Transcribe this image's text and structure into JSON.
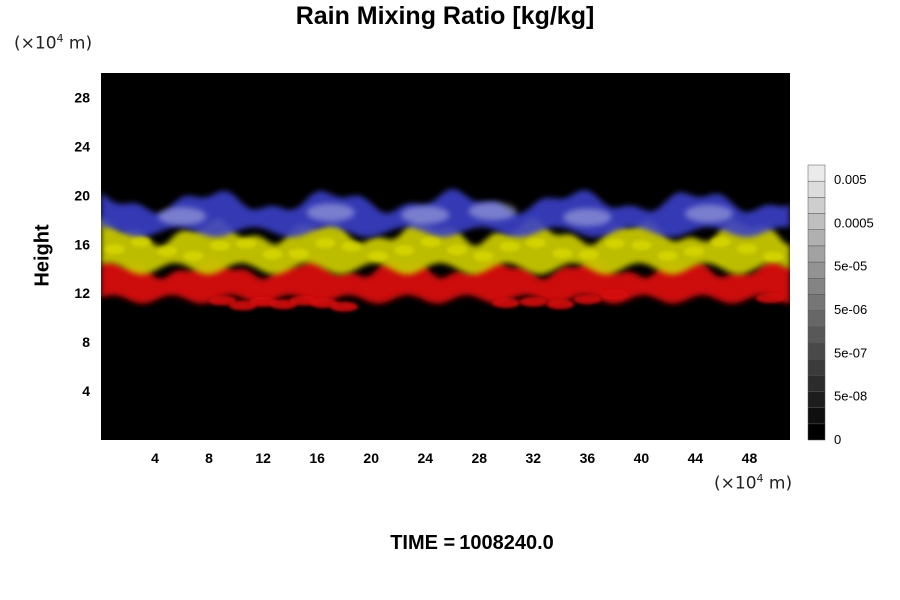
{
  "chart_data": {
    "type": "heatmap",
    "title": "Rain Mixing Ratio [kg/kg]",
    "ylabel": "Height",
    "x_unit": {
      "prefix": "(×10",
      "exp": "4",
      "suffix": " m)"
    },
    "y_unit": {
      "prefix": "(×10",
      "exp": "4",
      "suffix": " m)"
    },
    "xlim": [
      0,
      51
    ],
    "ylim": [
      0,
      30
    ],
    "x_ticks": [
      4,
      8,
      12,
      16,
      20,
      24,
      28,
      32,
      36,
      40,
      44,
      48
    ],
    "y_ticks": [
      4,
      8,
      12,
      16,
      20,
      24,
      28
    ],
    "background": "#000000",
    "layers": [
      {
        "color": "#3a3fc8",
        "y_range": [
          17,
          19.5
        ],
        "description": "upper layer (blue/white)"
      },
      {
        "color": "#c8c800",
        "y_range": [
          14,
          17
        ],
        "description": "middle layer (yellow)"
      },
      {
        "color": "#d81010",
        "y_range": [
          11.5,
          14
        ],
        "description": "lower layer (red)"
      }
    ],
    "colorbar": {
      "labels": [
        "0.005",
        "0.0005",
        "5e-05",
        "5e-06",
        "5e-07",
        "5e-08",
        "0"
      ],
      "levels": 17
    },
    "time": {
      "label": "TIME =",
      "value": "1008240.0"
    }
  }
}
